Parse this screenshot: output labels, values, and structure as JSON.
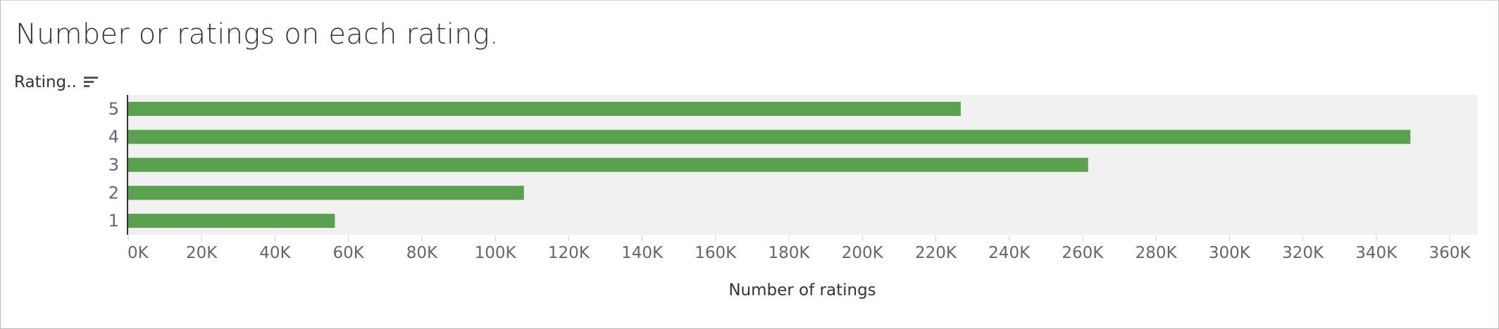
{
  "title": "Number or ratings on each rating.",
  "row_header": {
    "label": "Rating..",
    "icon": "sort-descending-icon"
  },
  "colors": {
    "bar": "#59a14f",
    "plot_background": "#f0f0f0",
    "axis_text": "#666666",
    "title_text": "#333333"
  },
  "chart_data": {
    "type": "bar",
    "orientation": "horizontal",
    "title": "Number or ratings on each rating.",
    "ylabel": "Rating..",
    "xlabel": "Number of ratings",
    "categories": [
      "5",
      "4",
      "3",
      "2",
      "1"
    ],
    "values": [
      226800,
      349300,
      261500,
      107800,
      56300
    ],
    "xlim": [
      0,
      365000
    ],
    "x_ticks": [
      0,
      20000,
      40000,
      60000,
      80000,
      100000,
      120000,
      140000,
      160000,
      180000,
      200000,
      220000,
      240000,
      260000,
      280000,
      300000,
      320000,
      340000,
      360000
    ],
    "x_tick_labels": [
      "0K",
      "20K",
      "40K",
      "60K",
      "80K",
      "100K",
      "120K",
      "140K",
      "160K",
      "180K",
      "200K",
      "220K",
      "240K",
      "260K",
      "280K",
      "300K",
      "320K",
      "340K",
      "360K"
    ],
    "grid": true,
    "legend": "none"
  }
}
